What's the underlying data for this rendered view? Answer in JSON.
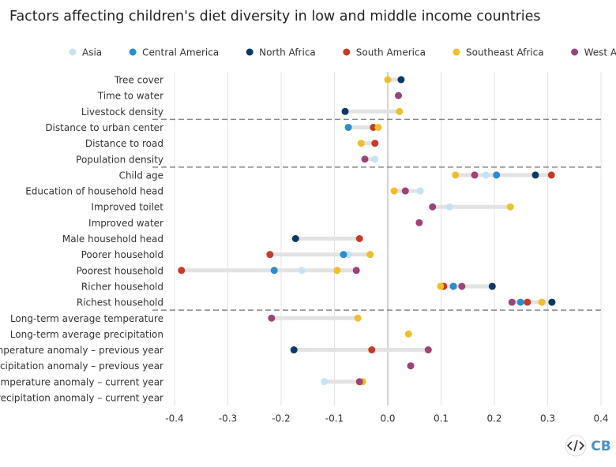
{
  "chart_data": {
    "type": "dot",
    "title": "Factors affecting children's diet diversity in low and middle income countries",
    "categories": [
      "Tree cover",
      "Time to water",
      "Livestock density",
      "Distance to urban center",
      "Distance to road",
      "Population density",
      "Child age",
      "Education of household head",
      "Improved toilet",
      "Improved water",
      "Male household head",
      "Poorer household",
      "Poorest household",
      "Richer household",
      "Richest household",
      "Long-term average temperature",
      "Long-term average precipitation",
      "Temperature anomaly – previous year",
      "Precipitation anomaly – previous year",
      "Temperature anomaly – current year",
      "Precipitation anomaly – current year"
    ],
    "series": [
      {
        "name": "Asia",
        "color": "#c5e3f6",
        "values": [
          null,
          null,
          null,
          null,
          null,
          -0.024,
          0.184,
          0.061,
          0.116,
          null,
          null,
          -0.074,
          -0.161,
          null,
          null,
          null,
          null,
          null,
          null,
          -0.119,
          null
        ]
      },
      {
        "name": "Central America",
        "color": "#2b8cce",
        "values": [
          null,
          null,
          null,
          -0.074,
          null,
          null,
          0.204,
          null,
          null,
          null,
          null,
          -0.083,
          -0.213,
          0.123,
          0.249,
          null,
          null,
          null,
          null,
          null,
          null
        ]
      },
      {
        "name": "North Africa",
        "color": "#0c3a64",
        "values": [
          0.025,
          null,
          -0.08,
          null,
          null,
          null,
          0.277,
          null,
          null,
          null,
          -0.173,
          null,
          null,
          0.196,
          0.308,
          null,
          null,
          -0.176,
          null,
          null,
          null
        ]
      },
      {
        "name": "South America",
        "color": "#c83a28",
        "values": [
          null,
          null,
          null,
          -0.027,
          -0.024,
          null,
          0.307,
          null,
          null,
          null,
          -0.053,
          -0.221,
          -0.387,
          0.105,
          0.262,
          null,
          null,
          -0.03,
          null,
          null,
          null
        ]
      },
      {
        "name": "Southeast Africa",
        "color": "#efbf2c",
        "values": [
          0.0,
          null,
          0.022,
          -0.018,
          -0.05,
          null,
          0.127,
          0.012,
          0.23,
          null,
          null,
          -0.033,
          -0.095,
          0.099,
          0.289,
          -0.056,
          0.039,
          null,
          null,
          -0.047,
          null
        ]
      },
      {
        "name": "West Africa",
        "color": "#9e4278",
        "values": [
          null,
          0.02,
          null,
          null,
          null,
          -0.043,
          0.163,
          0.033,
          0.084,
          0.059,
          null,
          null,
          -0.059,
          0.139,
          0.233,
          -0.218,
          null,
          0.076,
          0.043,
          -0.053,
          null
        ]
      }
    ],
    "xlim": [
      -0.4,
      0.4
    ],
    "xticks": [
      -0.4,
      -0.3,
      -0.2,
      -0.1,
      {
        "value": 0,
        "label": "0.0"
      },
      0.1,
      0.2,
      0.3,
      0.4
    ],
    "grid": true,
    "logo": "CB"
  }
}
